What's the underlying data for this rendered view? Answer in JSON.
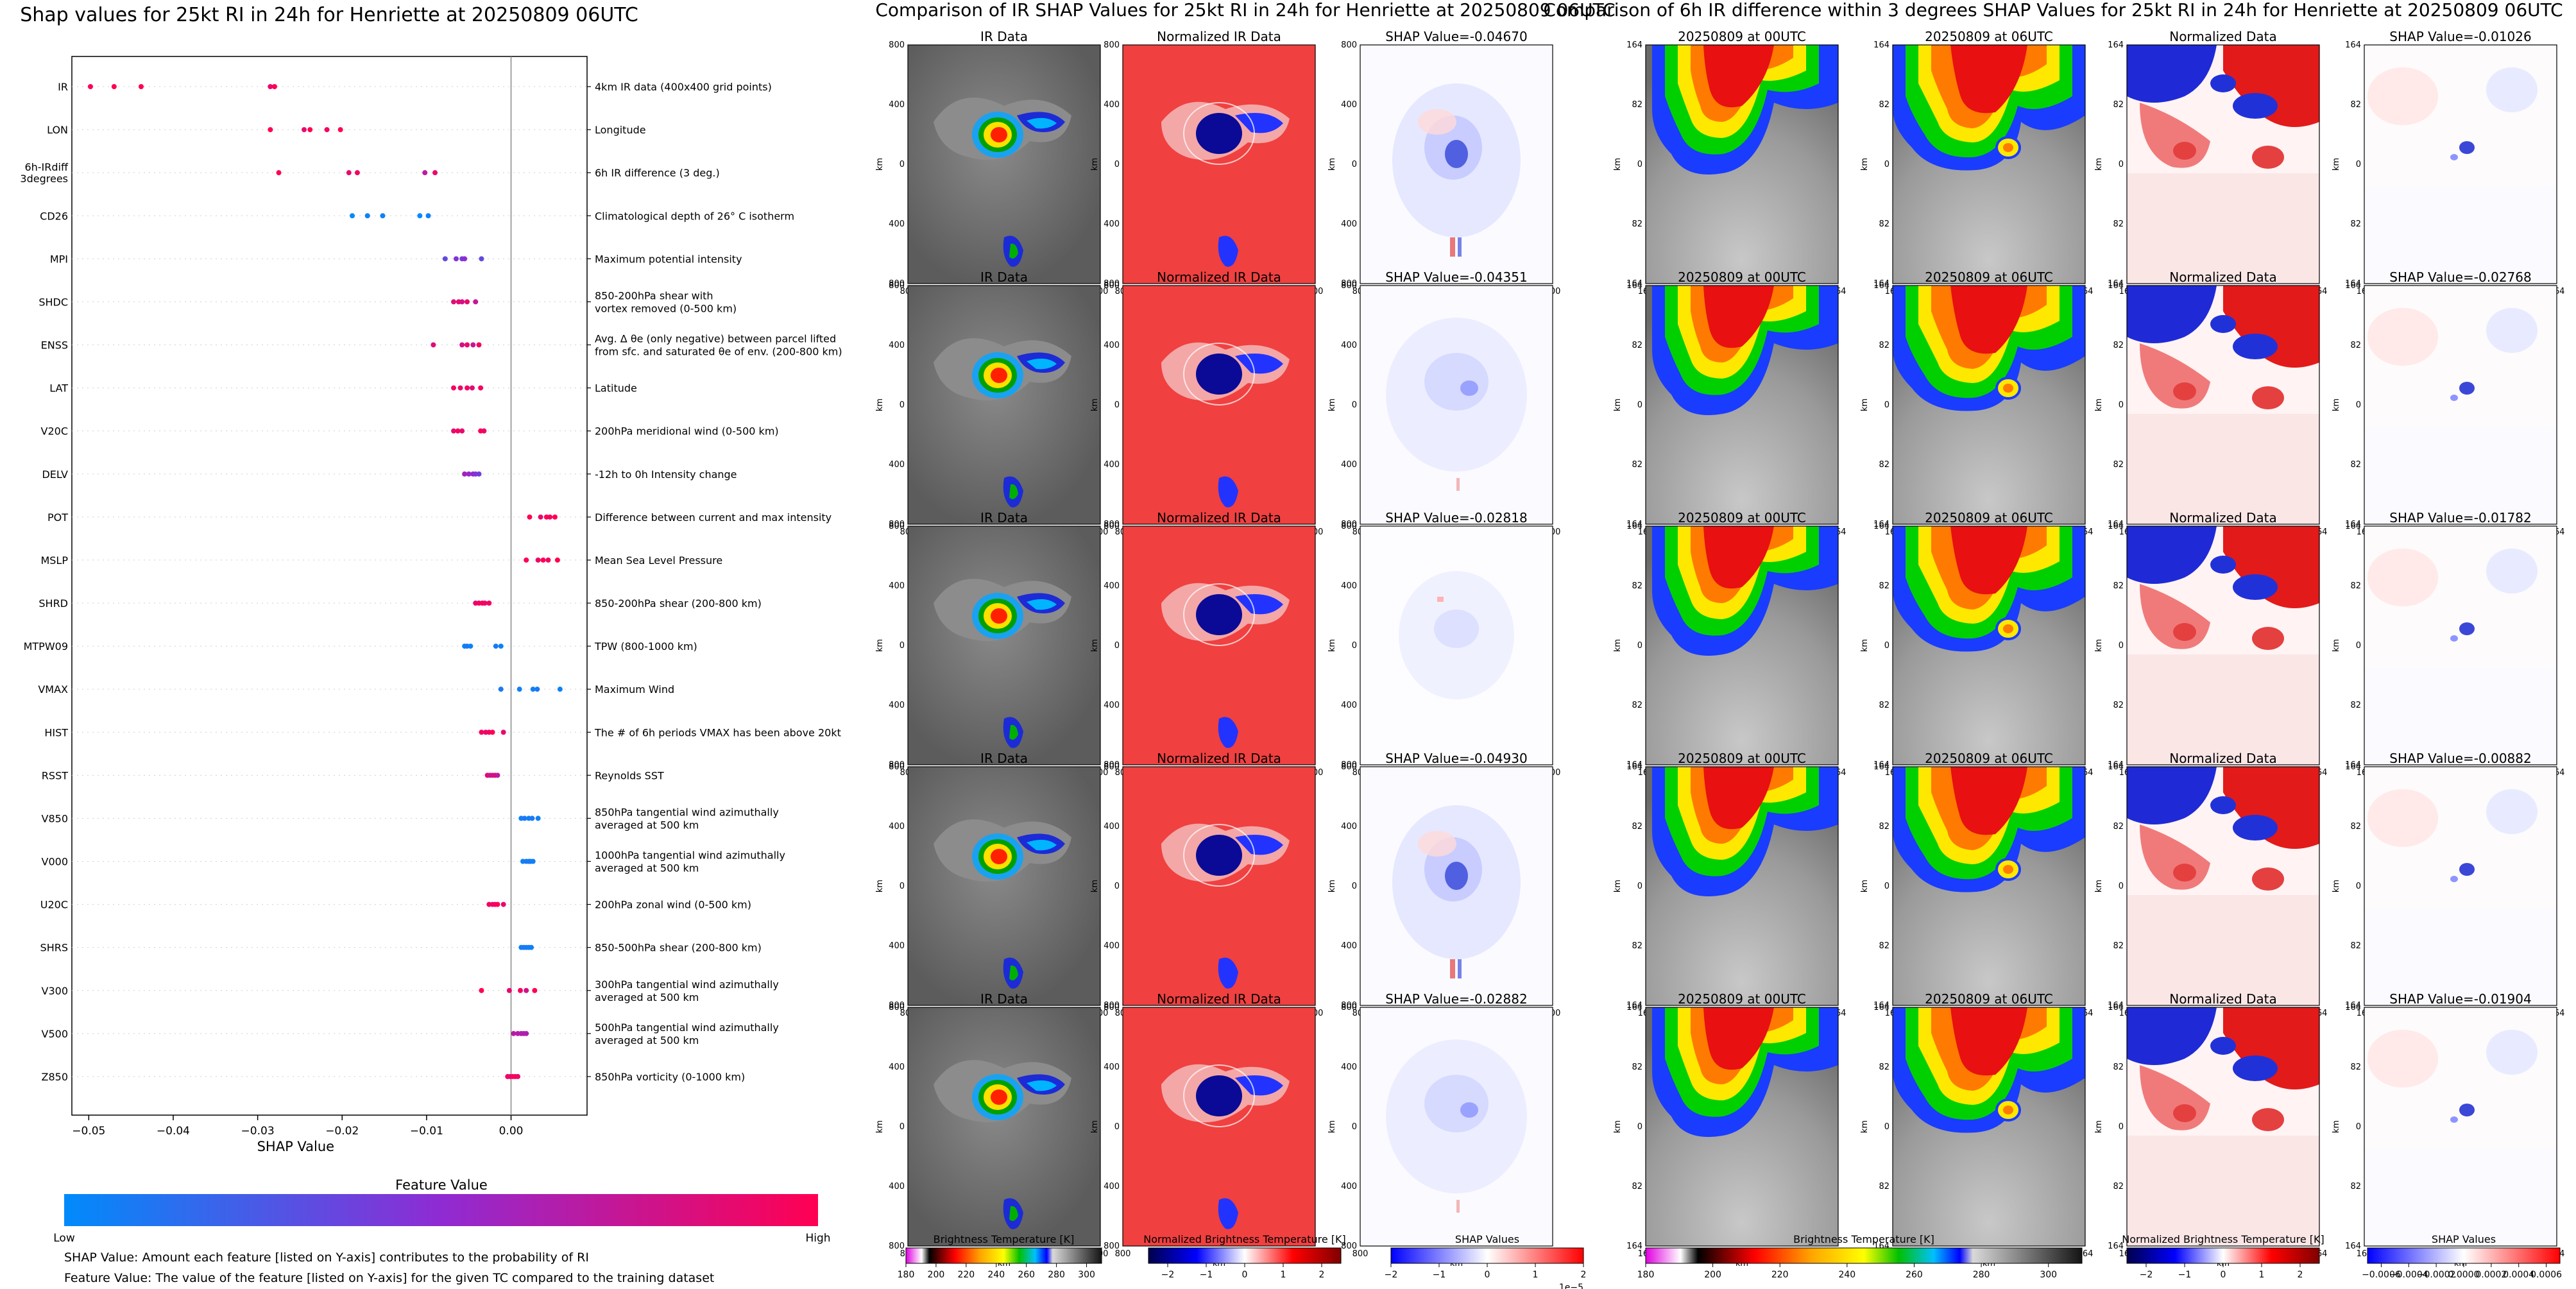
{
  "chart_data": [
    {
      "type": "scatter",
      "title": "Shap values for 25kt RI in 24h for Henriette at 20250809 06UTC",
      "xlabel": "SHAP Value",
      "ylabel": "",
      "xlim": [
        -0.052,
        0.009
      ],
      "xticks": [
        -0.05,
        -0.04,
        -0.03,
        -0.02,
        -0.01,
        0.0
      ],
      "xtick_labels": [
        "−0.05",
        "−0.04",
        "−0.03",
        "−0.02",
        "−0.01",
        "0.00"
      ],
      "colorbar": {
        "title": "Feature Value",
        "low": "Low",
        "high": "High",
        "colors": [
          "#008bfb",
          "#8f2bd3",
          "#ff0052"
        ]
      },
      "notes": [
        "SHAP Value: Amount each feature [listed on Y-axis] contributes to the probability of RI",
        "Feature Value: The value of the feature [listed on Y-axis] for the given TC compared to the training dataset"
      ],
      "features": [
        {
          "name": "IR",
          "desc": [
            "4km IR data (400x400 grid points)"
          ],
          "points": [
            [
              -0.0498,
              1
            ],
            [
              -0.047,
              1
            ],
            [
              -0.0438,
              1
            ],
            [
              -0.0285,
              0.9
            ],
            [
              -0.028,
              1
            ]
          ]
        },
        {
          "name": "LON",
          "desc": [
            "Longitude"
          ],
          "points": [
            [
              -0.0285,
              1
            ],
            [
              -0.0245,
              0.9
            ],
            [
              -0.0238,
              1
            ],
            [
              -0.0218,
              0.95
            ],
            [
              -0.0202,
              1
            ]
          ]
        },
        {
          "name": "6h-IRdiff 3degrees",
          "desc": [
            "6h IR difference (3 deg.)"
          ],
          "points": [
            [
              -0.0275,
              1
            ],
            [
              -0.0192,
              0.9
            ],
            [
              -0.0182,
              0.95
            ],
            [
              -0.0102,
              0.7
            ],
            [
              -0.009,
              0.9
            ]
          ]
        },
        {
          "name": "CD26",
          "desc": [
            "Climatological depth of 26° C isotherm"
          ],
          "points": [
            [
              -0.0188,
              0
            ],
            [
              -0.017,
              0.05
            ],
            [
              -0.0152,
              0.05
            ],
            [
              -0.0108,
              0
            ],
            [
              -0.0098,
              0.05
            ]
          ]
        },
        {
          "name": "MPI",
          "desc": [
            "Maximum potential intensity"
          ],
          "points": [
            [
              -0.0078,
              0.35
            ],
            [
              -0.0065,
              0.45
            ],
            [
              -0.0058,
              0.4
            ],
            [
              -0.0055,
              0.5
            ],
            [
              -0.0035,
              0.35
            ]
          ]
        },
        {
          "name": "SHDC",
          "desc": [
            "850-200hPa shear with",
            "vortex removed (0-500 km)"
          ],
          "points": [
            [
              -0.0068,
              0.85
            ],
            [
              -0.0062,
              0.9
            ],
            [
              -0.0058,
              0.8
            ],
            [
              -0.0052,
              0.9
            ],
            [
              -0.0042,
              0.75
            ]
          ]
        },
        {
          "name": "ENSS",
          "desc": [
            "Avg. Δ θe (only negative) between parcel lifted",
            "from sfc. and saturated θe of env. (200-800 km)"
          ],
          "points": [
            [
              -0.0092,
              0.85
            ],
            [
              -0.0058,
              0.8
            ],
            [
              -0.0052,
              0.9
            ],
            [
              -0.0045,
              0.75
            ],
            [
              -0.0038,
              0.95
            ]
          ]
        },
        {
          "name": "LAT",
          "desc": [
            "Latitude"
          ],
          "points": [
            [
              -0.0068,
              0.95
            ],
            [
              -0.006,
              0.9
            ],
            [
              -0.0052,
              0.95
            ],
            [
              -0.0046,
              0.85
            ],
            [
              -0.0036,
              0.95
            ]
          ]
        },
        {
          "name": "V20C",
          "desc": [
            "200hPa meridional wind (0-500 km)"
          ],
          "points": [
            [
              -0.0068,
              0.9
            ],
            [
              -0.0063,
              0.95
            ],
            [
              -0.0058,
              0.9
            ],
            [
              -0.0036,
              1
            ],
            [
              -0.0032,
              0.9
            ]
          ]
        },
        {
          "name": "DELV",
          "desc": [
            "-12h to 0h Intensity change"
          ],
          "points": [
            [
              -0.0055,
              0.6
            ],
            [
              -0.005,
              0.5
            ],
            [
              -0.0045,
              0.55
            ],
            [
              -0.0042,
              0.45
            ],
            [
              -0.0038,
              0.4
            ]
          ]
        },
        {
          "name": "POT",
          "desc": [
            "Difference between current and max intensity"
          ],
          "points": [
            [
              0.0022,
              1
            ],
            [
              0.0035,
              0.9
            ],
            [
              0.0042,
              1
            ],
            [
              0.0046,
              0.95
            ],
            [
              0.0052,
              1
            ]
          ]
        },
        {
          "name": "MSLP",
          "desc": [
            "Mean Sea Level Pressure"
          ],
          "points": [
            [
              0.0018,
              1
            ],
            [
              0.0032,
              0.9
            ],
            [
              0.0038,
              1
            ],
            [
              0.0044,
              0.95
            ],
            [
              0.0055,
              1
            ]
          ]
        },
        {
          "name": "SHRD",
          "desc": [
            "850-200hPa shear (200-800 km)"
          ],
          "points": [
            [
              -0.0042,
              0.9
            ],
            [
              -0.0038,
              0.95
            ],
            [
              -0.0034,
              1
            ],
            [
              -0.0031,
              0.9
            ],
            [
              -0.0026,
              0.95
            ]
          ]
        },
        {
          "name": "MTPW09",
          "desc": [
            "TPW (800-1000 km)"
          ],
          "points": [
            [
              -0.0055,
              0.05
            ],
            [
              -0.0052,
              0.1
            ],
            [
              -0.0048,
              0.05
            ],
            [
              -0.0018,
              0.1
            ],
            [
              -0.0012,
              0.05
            ]
          ]
        },
        {
          "name": "VMAX",
          "desc": [
            "Maximum Wind"
          ],
          "points": [
            [
              -0.0012,
              0.1
            ],
            [
              0.001,
              0.05
            ],
            [
              0.0026,
              0.05
            ],
            [
              0.0031,
              0.1
            ],
            [
              0.0058,
              0.05
            ]
          ]
        },
        {
          "name": "HIST",
          "desc": [
            "The # of 6h periods VMAX has been above 20kt"
          ],
          "points": [
            [
              -0.0035,
              0.95
            ],
            [
              -0.003,
              0.9
            ],
            [
              -0.0026,
              0.95
            ],
            [
              -0.0022,
              1
            ],
            [
              -0.0009,
              0.9
            ]
          ]
        },
        {
          "name": "RSST",
          "desc": [
            "Reynolds SST"
          ],
          "points": [
            [
              -0.0028,
              0.9
            ],
            [
              -0.0025,
              0.75
            ],
            [
              -0.0022,
              0.8
            ],
            [
              -0.0019,
              0.85
            ],
            [
              -0.0016,
              0.7
            ]
          ]
        },
        {
          "name": "V850",
          "desc": [
            "850hPa tangential wind azimuthally",
            "averaged at 500 km"
          ],
          "points": [
            [
              0.0012,
              0.05
            ],
            [
              0.0016,
              0.1
            ],
            [
              0.0021,
              0.05
            ],
            [
              0.0025,
              0.1
            ],
            [
              0.0032,
              0.05
            ]
          ]
        },
        {
          "name": "V000",
          "desc": [
            "1000hPa tangential wind azimuthally",
            "averaged at 500 km"
          ],
          "points": [
            [
              0.0014,
              0.05
            ],
            [
              0.0018,
              0.1
            ],
            [
              0.0021,
              0.05
            ],
            [
              0.0023,
              0.1
            ],
            [
              0.0026,
              0.05
            ]
          ]
        },
        {
          "name": "U20C",
          "desc": [
            "200hPa zonal wind (0-500 km)"
          ],
          "points": [
            [
              -0.0026,
              0.95
            ],
            [
              -0.0022,
              0.9
            ],
            [
              -0.0019,
              0.95
            ],
            [
              -0.0016,
              1
            ],
            [
              -0.0009,
              0.9
            ]
          ]
        },
        {
          "name": "SHRS",
          "desc": [
            "850-500hPa shear (200-800 km)"
          ],
          "points": [
            [
              0.0012,
              0.05
            ],
            [
              0.0015,
              0.1
            ],
            [
              0.0018,
              0.05
            ],
            [
              0.0021,
              0.1
            ],
            [
              0.0024,
              0.05
            ]
          ]
        },
        {
          "name": "V300",
          "desc": [
            "300hPa tangential wind azimuthally",
            "averaged at 500 km"
          ],
          "points": [
            [
              -0.0035,
              1
            ],
            [
              -0.0002,
              0.9
            ],
            [
              0.0011,
              0.95
            ],
            [
              0.0018,
              0.8
            ],
            [
              0.0028,
              1
            ]
          ]
        },
        {
          "name": "V500",
          "desc": [
            "500hPa tangential wind azimuthally",
            "averaged at 500 km"
          ],
          "points": [
            [
              0.0003,
              0.7
            ],
            [
              0.0008,
              0.65
            ],
            [
              0.0012,
              0.7
            ],
            [
              0.0015,
              0.6
            ],
            [
              0.0018,
              0.65
            ]
          ]
        },
        {
          "name": "Z850",
          "desc": [
            "850hPa vorticity (0-1000 km)"
          ],
          "points": [
            [
              -0.0004,
              0.95
            ],
            [
              -0.0001,
              0.9
            ],
            [
              0.0002,
              0.95
            ],
            [
              0.0005,
              1
            ],
            [
              0.0008,
              0.9
            ]
          ]
        }
      ]
    },
    {
      "type": "heatmap",
      "title": "Comparison of IR SHAP Values for 25kt RI in 24h for Henriette at 20250809 06UTC",
      "column_titles": [
        "IR Data",
        "Normalized IR Data"
      ],
      "shap_titles": [
        "SHAP Value=-0.04670",
        "SHAP Value=-0.04351",
        "SHAP Value=-0.02818",
        "SHAP Value=-0.04930",
        "SHAP Value=-0.02882"
      ],
      "axis_label": "km",
      "ticks": [
        "800",
        "400",
        "0",
        "400",
        "800"
      ],
      "colorbars": [
        {
          "label": "Brightness Temperature [K]",
          "ticks": [
            "180",
            "200",
            "220",
            "240",
            "260",
            "280",
            "300"
          ],
          "range": [
            180,
            310
          ]
        },
        {
          "label": "Normalized Brightness Temperature [K]",
          "ticks": [
            "−2",
            "−1",
            "0",
            "1",
            "2"
          ],
          "range": [
            -2.5,
            2.5
          ]
        },
        {
          "label": "SHAP Values",
          "ticks": [
            "−2",
            "−1",
            "0",
            "1",
            "2"
          ],
          "range": [
            -2,
            2
          ],
          "exponent": "1e−5"
        }
      ]
    },
    {
      "type": "heatmap",
      "title": "Comparison of 6h IR difference within 3 degrees SHAP Values for 25kt RI in 24h for Henriette at 20250809 06UTC",
      "column_titles": [
        "20250809 at 00UTC",
        "20250809 at 06UTC",
        "Normalized Data"
      ],
      "shap_titles": [
        "SHAP Value=-0.01026",
        "SHAP Value=-0.02768",
        "SHAP Value=-0.01782",
        "SHAP Value=-0.00882",
        "SHAP Value=-0.01904"
      ],
      "axis_label": "km",
      "ticks": [
        "164",
        "82",
        "0",
        "82",
        "164"
      ],
      "colorbars": [
        {
          "label": "Brightness Temperature [K]",
          "ticks": [
            "180",
            "200",
            "220",
            "240",
            "260",
            "280",
            "300"
          ],
          "range": [
            180,
            310
          ]
        },
        {
          "label": "Normalized Brightness Temperature [K]",
          "ticks": [
            "−2",
            "−1",
            "0",
            "1",
            "2"
          ],
          "range": [
            -2.5,
            2.5
          ]
        },
        {
          "label": "SHAP Values",
          "ticks": [
            "−0.0006",
            "−0.0004",
            "−0.0002",
            "0.0000",
            "0.0002",
            "0.0004",
            "0.0006"
          ],
          "range": [
            -0.0007,
            0.0007
          ]
        }
      ]
    }
  ]
}
